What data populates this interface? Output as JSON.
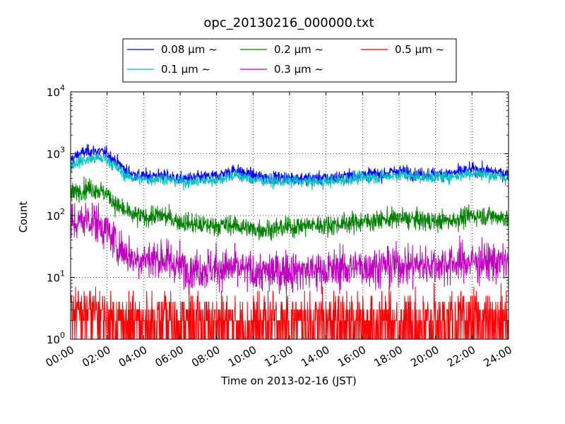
{
  "chart_data": {
    "type": "line",
    "title": "opc_20130216_000000.txt",
    "xlabel": "Time on 2013-02-16 (JST)",
    "ylabel": "Count",
    "x_ticks": [
      "00:00",
      "02:00",
      "04:00",
      "06:00",
      "08:00",
      "10:00",
      "12:00",
      "14:00",
      "16:00",
      "18:00",
      "20:00",
      "22:00",
      "24:00"
    ],
    "xlim_hours": [
      0,
      24
    ],
    "y_scale": "log",
    "ylim": [
      1,
      10000
    ],
    "y_ticks": [
      {
        "base": "10",
        "exp": "0",
        "value": 1
      },
      {
        "base": "10",
        "exp": "1",
        "value": 10
      },
      {
        "base": "10",
        "exp": "2",
        "value": 100
      },
      {
        "base": "10",
        "exp": "3",
        "value": 1000
      },
      {
        "base": "10",
        "exp": "4",
        "value": 10000
      }
    ],
    "grid": true,
    "legend": {
      "placement": "top",
      "columns": 3
    },
    "series": [
      {
        "name": "0.08 μm ~",
        "color": "#0000ff",
        "noise_factor": 1.12,
        "points": [
          [
            0,
            800
          ],
          [
            0.5,
            1000
          ],
          [
            1,
            1100
          ],
          [
            1.5,
            1100
          ],
          [
            2,
            1000
          ],
          [
            2.5,
            750
          ],
          [
            3,
            550
          ],
          [
            3.5,
            460
          ],
          [
            4,
            430
          ],
          [
            5,
            450
          ],
          [
            6,
            390
          ],
          [
            7,
            410
          ],
          [
            8,
            440
          ],
          [
            9,
            550
          ],
          [
            10,
            440
          ],
          [
            11,
            410
          ],
          [
            12,
            410
          ],
          [
            13,
            400
          ],
          [
            14,
            400
          ],
          [
            15,
            430
          ],
          [
            16,
            470
          ],
          [
            17,
            470
          ],
          [
            18,
            530
          ],
          [
            19,
            470
          ],
          [
            20,
            470
          ],
          [
            21,
            490
          ],
          [
            22,
            560
          ],
          [
            23,
            520
          ],
          [
            24,
            470
          ]
        ]
      },
      {
        "name": "0.1 μm ~",
        "color": "#00bfbf",
        "noise_factor": 1.12,
        "points": [
          [
            0,
            650
          ],
          [
            0.5,
            750
          ],
          [
            1,
            800
          ],
          [
            1.5,
            850
          ],
          [
            2,
            800
          ],
          [
            2.5,
            600
          ],
          [
            3,
            450
          ],
          [
            3.5,
            400
          ],
          [
            4,
            380
          ],
          [
            5,
            400
          ],
          [
            6,
            350
          ],
          [
            7,
            360
          ],
          [
            8,
            380
          ],
          [
            9,
            450
          ],
          [
            10,
            380
          ],
          [
            11,
            360
          ],
          [
            12,
            360
          ],
          [
            13,
            350
          ],
          [
            14,
            350
          ],
          [
            15,
            380
          ],
          [
            16,
            410
          ],
          [
            17,
            420
          ],
          [
            18,
            460
          ],
          [
            19,
            420
          ],
          [
            20,
            420
          ],
          [
            21,
            430
          ],
          [
            22,
            490
          ],
          [
            23,
            450
          ],
          [
            24,
            400
          ]
        ]
      },
      {
        "name": "0.2 μm ~",
        "color": "#008000",
        "noise_factor": 1.2,
        "points": [
          [
            0,
            220
          ],
          [
            0.5,
            260
          ],
          [
            1,
            280
          ],
          [
            1.5,
            260
          ],
          [
            2,
            220
          ],
          [
            2.5,
            150
          ],
          [
            3,
            115
          ],
          [
            3.5,
            100
          ],
          [
            4,
            95
          ],
          [
            5,
            100
          ],
          [
            6,
            80
          ],
          [
            7,
            70
          ],
          [
            8,
            70
          ],
          [
            9,
            70
          ],
          [
            10,
            60
          ],
          [
            11,
            60
          ],
          [
            12,
            65
          ],
          [
            13,
            70
          ],
          [
            14,
            70
          ],
          [
            15,
            75
          ],
          [
            16,
            80
          ],
          [
            17,
            85
          ],
          [
            18,
            90
          ],
          [
            19,
            85
          ],
          [
            20,
            80
          ],
          [
            21,
            85
          ],
          [
            22,
            100
          ],
          [
            23,
            100
          ],
          [
            24,
            90
          ]
        ]
      },
      {
        "name": "0.3 μm ~",
        "color": "#bf00bf",
        "noise_factor": 1.45,
        "points": [
          [
            0,
            70
          ],
          [
            0.5,
            80
          ],
          [
            1,
            90
          ],
          [
            1.5,
            75
          ],
          [
            2,
            55
          ],
          [
            2.5,
            35
          ],
          [
            3,
            25
          ],
          [
            3.5,
            20
          ],
          [
            4,
            20
          ],
          [
            5,
            20
          ],
          [
            6,
            15
          ],
          [
            7,
            14
          ],
          [
            8,
            14
          ],
          [
            9,
            14
          ],
          [
            10,
            12
          ],
          [
            11,
            12
          ],
          [
            12,
            13
          ],
          [
            13,
            13
          ],
          [
            14,
            13
          ],
          [
            15,
            14
          ],
          [
            16,
            15
          ],
          [
            17,
            15
          ],
          [
            18,
            16
          ],
          [
            19,
            16
          ],
          [
            20,
            16
          ],
          [
            21,
            17
          ],
          [
            22,
            18
          ],
          [
            23,
            18
          ],
          [
            24,
            17
          ]
        ]
      },
      {
        "name": "0.5 μm ~",
        "color": "#ff0000",
        "discrete": true,
        "points": [
          [
            0,
            3
          ],
          [
            1,
            3
          ],
          [
            2,
            2.5
          ],
          [
            3,
            2
          ],
          [
            6,
            2
          ],
          [
            12,
            2
          ],
          [
            18,
            2
          ],
          [
            24,
            2
          ]
        ]
      }
    ]
  }
}
